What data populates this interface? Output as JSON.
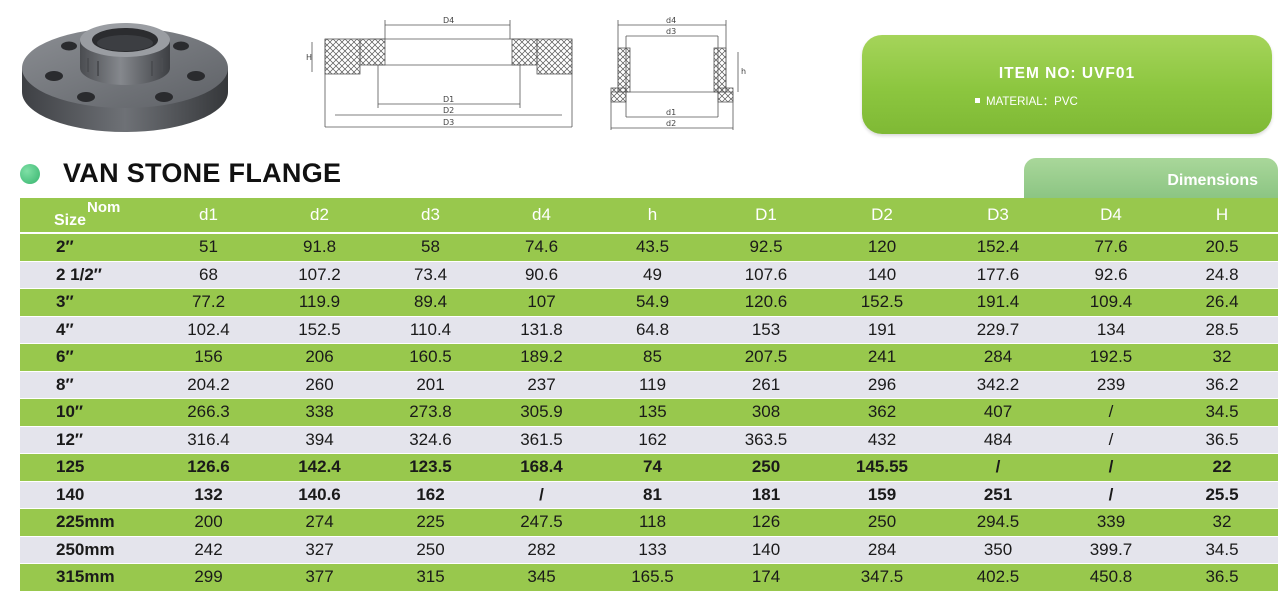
{
  "item_box": {
    "item_no": "ITEM  NO: UVF01",
    "material": "MATERIAL：PVC"
  },
  "title": "VAN STONE FLANGE",
  "dimensions_label": "Dimensions",
  "table": {
    "header_nom": "Nom",
    "header_size": "Size",
    "columns": [
      "d1",
      "d2",
      "d3",
      "d4",
      "h",
      "D1",
      "D2",
      "D3",
      "D4",
      "H"
    ],
    "rows": [
      {
        "size": "2″",
        "values": [
          "51",
          "91.8",
          "58",
          "74.6",
          "43.5",
          "92.5",
          "120",
          "152.4",
          "77.6",
          "20.5"
        ]
      },
      {
        "size": "2 1/2″",
        "values": [
          "68",
          "107.2",
          "73.4",
          "90.6",
          "49",
          "107.6",
          "140",
          "177.6",
          "92.6",
          "24.8"
        ]
      },
      {
        "size": "3″",
        "values": [
          "77.2",
          "119.9",
          "89.4",
          "107",
          "54.9",
          "120.6",
          "152.5",
          "191.4",
          "109.4",
          "26.4"
        ]
      },
      {
        "size": "4″",
        "values": [
          "102.4",
          "152.5",
          "110.4",
          "131.8",
          "64.8",
          "153",
          "191",
          "229.7",
          "134",
          "28.5"
        ]
      },
      {
        "size": "6″",
        "values": [
          "156",
          "206",
          "160.5",
          "189.2",
          "85",
          "207.5",
          "241",
          "284",
          "192.5",
          "32"
        ]
      },
      {
        "size": "8″",
        "values": [
          "204.2",
          "260",
          "201",
          "237",
          "119",
          "261",
          "296",
          "342.2",
          "239",
          "36.2"
        ]
      },
      {
        "size": "10″",
        "values": [
          "266.3",
          "338",
          "273.8",
          "305.9",
          "135",
          "308",
          "362",
          "407",
          "/",
          "34.5"
        ]
      },
      {
        "size": "12″",
        "values": [
          "316.4",
          "394",
          "324.6",
          "361.5",
          "162",
          "363.5",
          "432",
          "484",
          "/",
          "36.5"
        ]
      },
      {
        "size": "125",
        "values": [
          "126.6",
          "142.4",
          "123.5",
          "168.4",
          "74",
          "250",
          "145.55",
          "/",
          "/",
          "22"
        ]
      },
      {
        "size": "140",
        "values": [
          "132",
          "140.6",
          "162",
          "/",
          "81",
          "181",
          "159",
          "251",
          "/",
          "25.5"
        ]
      },
      {
        "size": "225mm",
        "values": [
          "200",
          "274",
          "225",
          "247.5",
          "118",
          "126",
          "250",
          "294.5",
          "339",
          "32"
        ]
      },
      {
        "size": "250mm",
        "values": [
          "242",
          "327",
          "250",
          "282",
          "133",
          "140",
          "284",
          "350",
          "399.7",
          "34.5"
        ]
      },
      {
        "size": "315mm",
        "values": [
          "299",
          "377",
          "315",
          "345",
          "165.5",
          "174",
          "347.5",
          "402.5",
          "450.8",
          "36.5"
        ]
      }
    ]
  },
  "drawing1": {
    "labels": [
      "D4",
      "D1",
      "D2",
      "D3",
      "H"
    ]
  },
  "drawing2": {
    "labels": [
      "d4",
      "d3",
      "d1",
      "d2",
      "h"
    ]
  }
}
